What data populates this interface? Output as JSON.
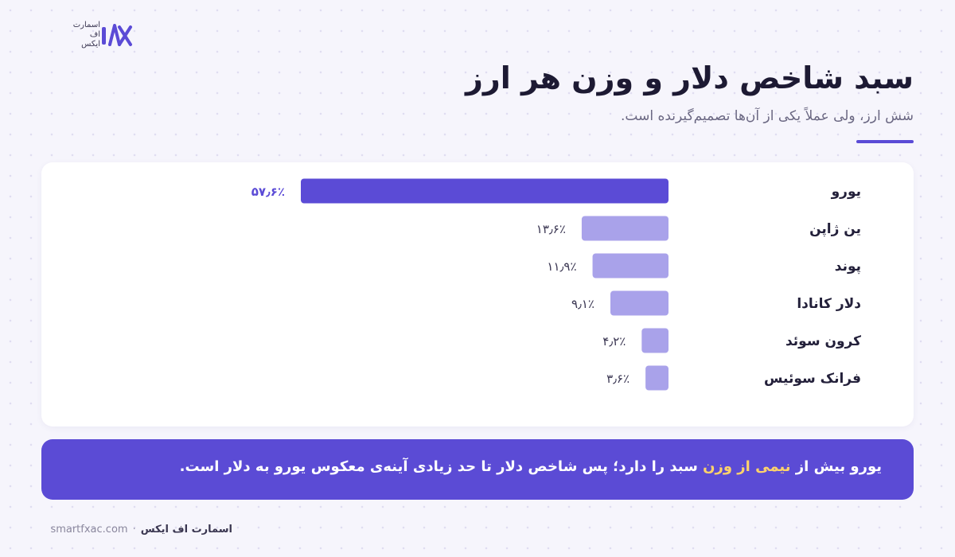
{
  "logo": {
    "line1": "اسمارت",
    "line2": "اف",
    "line3": "ایکس"
  },
  "header": {
    "title": "سبد شاخص دلار و وزن هر ارز",
    "subtitle": "شش ارز، ولی عملاً یکی از آن‌ها تصمیم‌گیرنده است."
  },
  "colors": {
    "primary": "#5b4bd6",
    "secondary": "#a9a2ea",
    "highlight": "#ffd36b"
  },
  "chart_data": {
    "type": "bar",
    "orientation": "horizontal",
    "categories": [
      "یورو",
      "ین ژاپن",
      "پوند",
      "دلار کانادا",
      "کرون سوئد",
      "فرانک سوئیس"
    ],
    "values": [
      57.6,
      13.6,
      11.9,
      9.1,
      4.2,
      3.6
    ],
    "value_labels": [
      "۵۷٫۶٪",
      "۱۳٫۶٪",
      "۱۱٫۹٪",
      "۹٫۱٪",
      "۴٫۲٪",
      "۳٫۶٪"
    ],
    "unit": "%",
    "grid": false,
    "legend": "none"
  },
  "callout": {
    "before": "یورو بیش از",
    "highlight": "نیمی از وزن",
    "after": "سبد را دارد؛ پس شاخص دلار تا حد زیادی آینه‌ی معکوس یورو به دلار است."
  },
  "footer": {
    "brand": "اسمارت اف ایکس",
    "separator": "·",
    "site": "smartfxac.com"
  }
}
